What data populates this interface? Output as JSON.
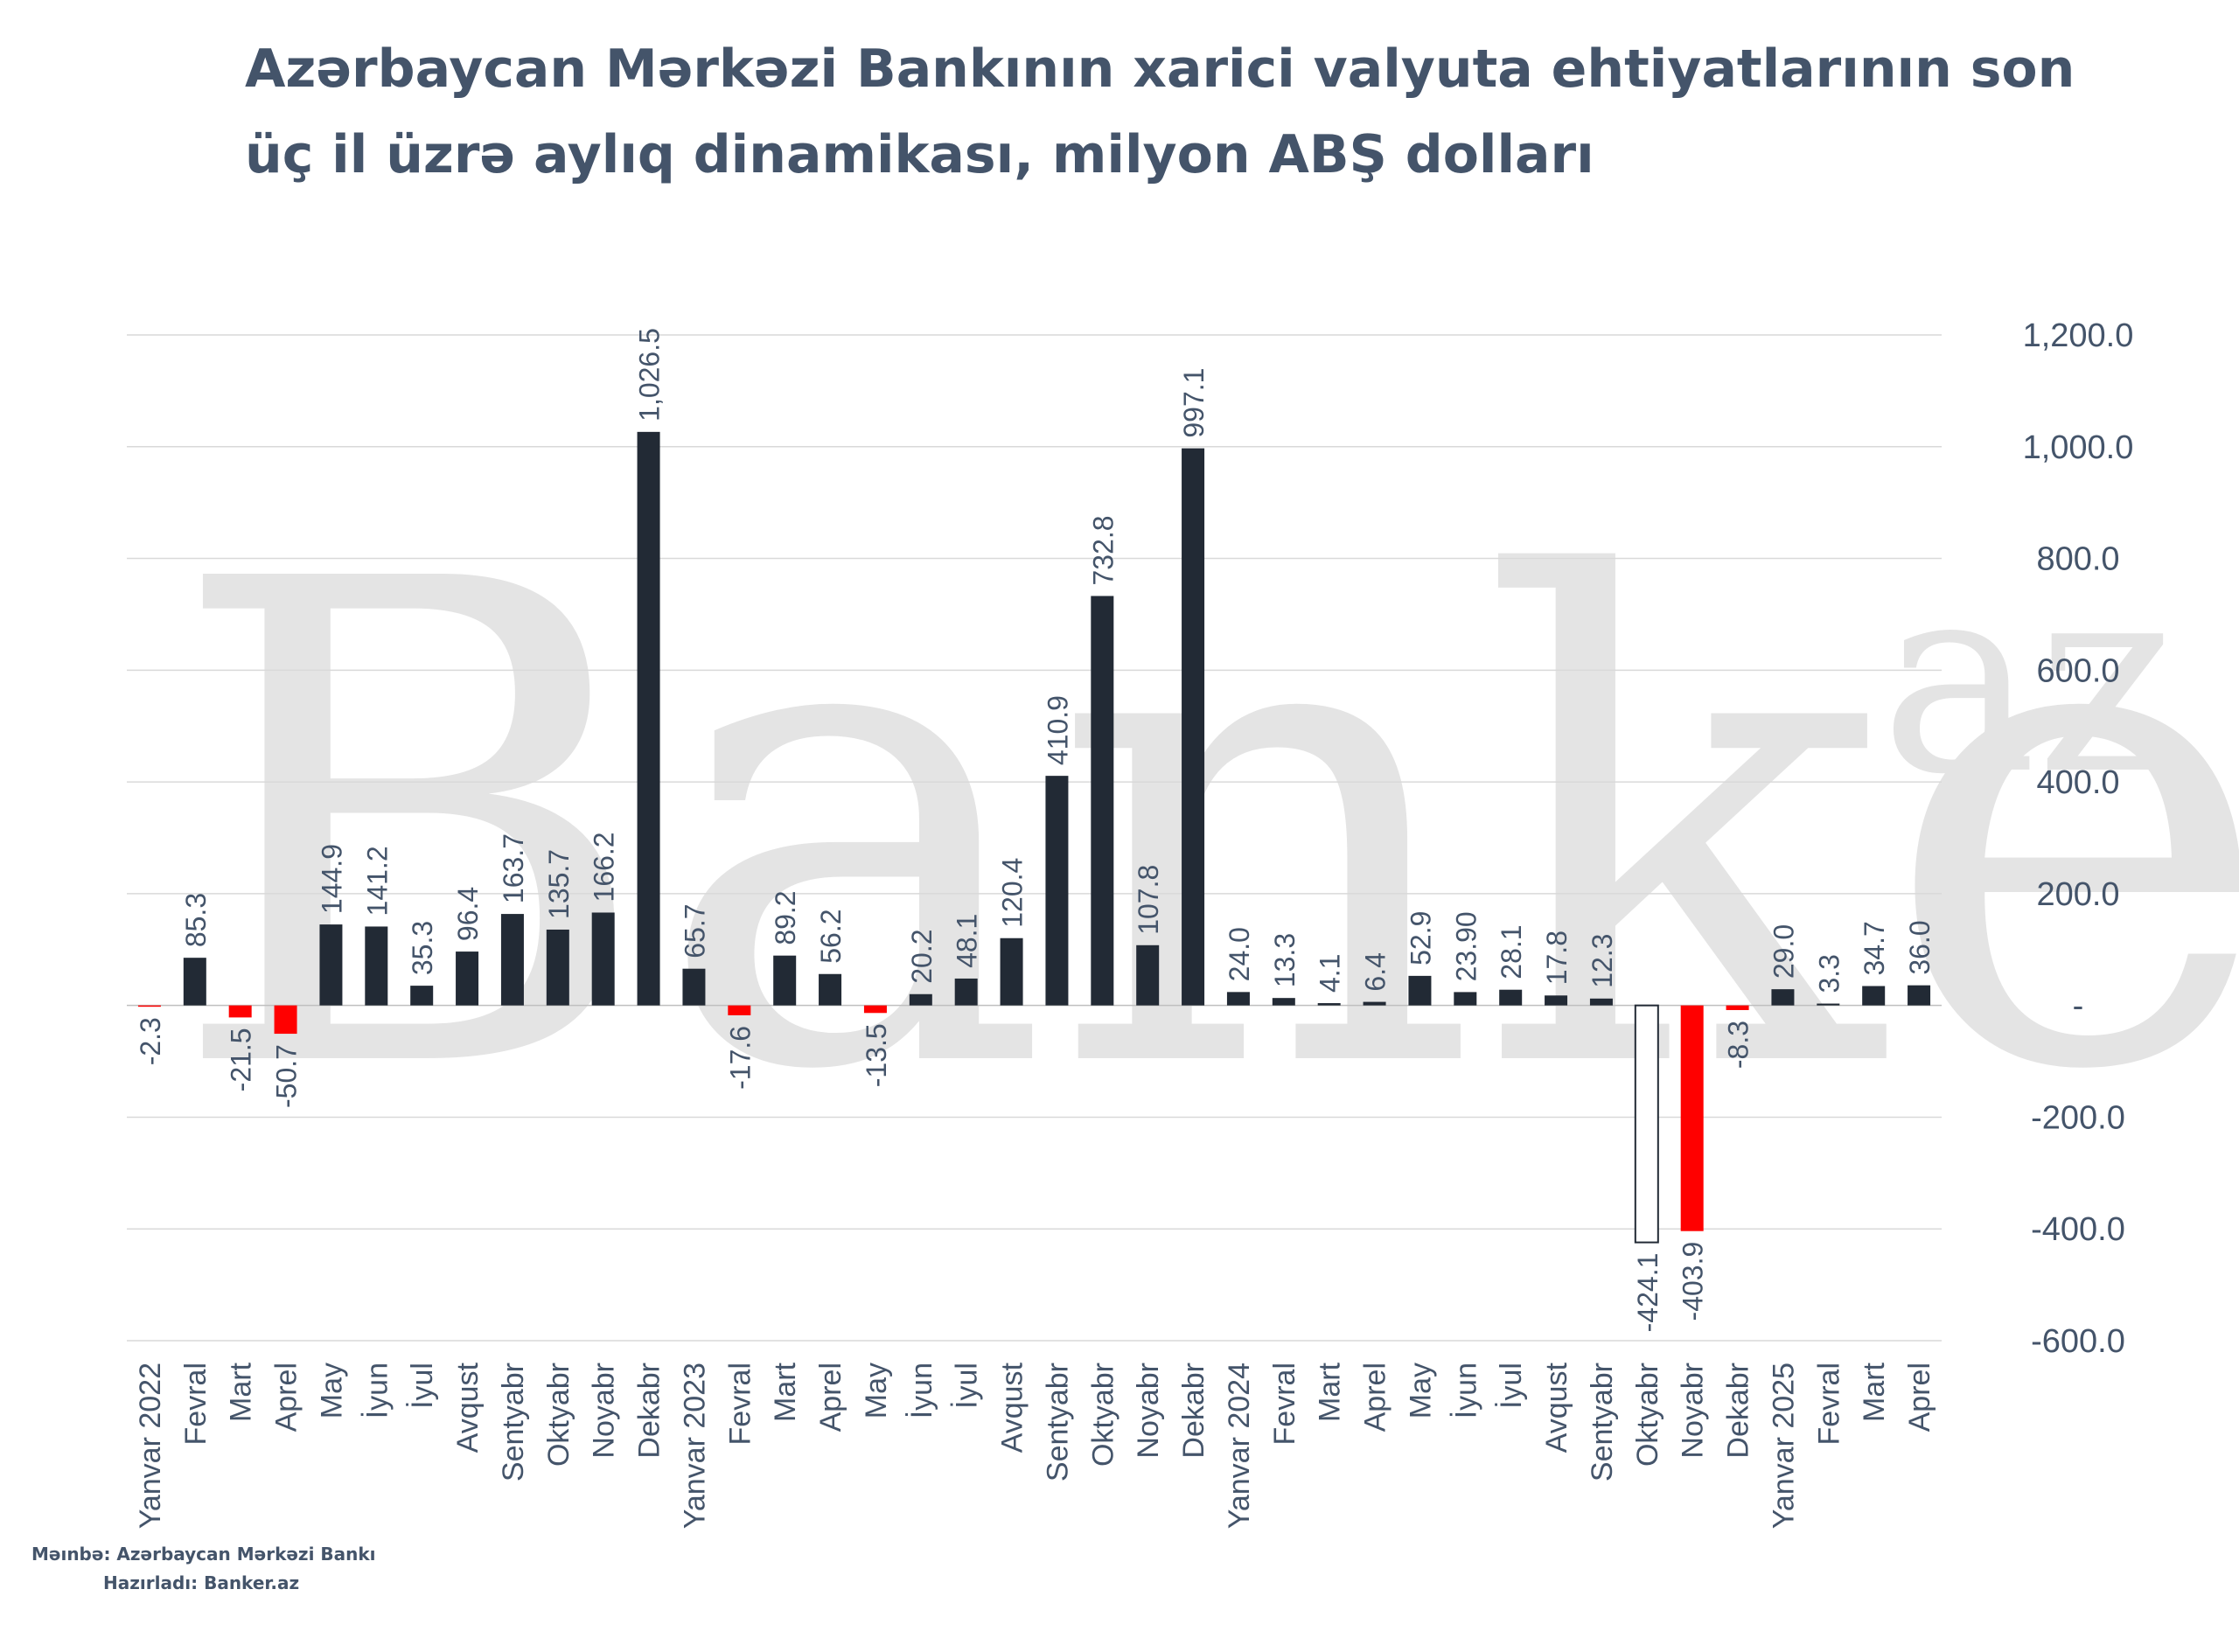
{
  "header": {
    "title_line1": "Azərbaycan Mərkəzi Bankının xarici valyuta ehtiyatlarının son",
    "title_line2": "üç il üzrə aylıq dinamikası, milyon ABŞ dolları"
  },
  "watermark": {
    "text_main": "Banker",
    "text_sup": "az"
  },
  "footer": {
    "source": "Məınbə: Azərbaycan Mərkəzi Bankı",
    "prepared": "Hazırladı: Banker.az"
  },
  "colors": {
    "positive": "#222a35",
    "negative": "#ff0000",
    "outlined": "#ffffff",
    "outline_stroke": "#222a35",
    "text": "#44546a",
    "grid": "#d9d9d9",
    "watermark": "#e4e4e4"
  },
  "chart_data": {
    "type": "bar",
    "title": "Azərbaycan Mərkəzi Bankının xarici valyuta ehtiyatlarının son üç il üzrə aylıq dinamikası, milyon ABŞ dolları",
    "categories": [
      "Yanvar  2022",
      "Fevral",
      "Mart",
      "Aprel",
      "May",
      "İyun",
      "İyul",
      "Avqust",
      "Sentyabr",
      "Oktyabr",
      "Noyabr",
      "Dekabr",
      "Yanvar 2023",
      "Fevral",
      "Mart",
      "Aprel",
      "May",
      "İyun",
      "İyul",
      "Avqust",
      "Sentyabr",
      "Oktyabr",
      "Noyabr",
      "Dekabr",
      "Yanvar 2024",
      "Fevral",
      "Mart",
      "Aprel",
      "May",
      "İyun",
      "İyul",
      "Avqust",
      "Sentyabr",
      "Oktyabr",
      "Noyabr",
      "Dekabr",
      "Yanvar 2025",
      "Fevral",
      "Mart",
      "Aprel"
    ],
    "values": [
      -2.3,
      85.3,
      -21.5,
      -50.7,
      144.9,
      141.2,
      35.3,
      96.4,
      163.7,
      135.7,
      166.2,
      1026.5,
      65.7,
      -17.6,
      89.2,
      56.2,
      -13.5,
      20.2,
      48.1,
      120.4,
      410.9,
      732.8,
      107.8,
      997.1,
      24.0,
      13.3,
      4.1,
      6.4,
      52.9,
      23.9,
      28.1,
      17.8,
      12.3,
      -424.1,
      -403.9,
      -8.3,
      29.0,
      3.3,
      34.7,
      36.0
    ],
    "data_labels": [
      "-2.3",
      "85.3",
      "-21.5",
      "-50.7",
      "144.9",
      "141.2",
      "35.3",
      "96.4",
      "163.7",
      "135.7",
      "166.2",
      "1,026.5",
      "65.7",
      "-17.6",
      "89.2",
      "56.2",
      "-13.5",
      "20.2",
      "48.1",
      "120.4",
      "410.9",
      "732.8",
      "107.8",
      "997.1",
      "24.0",
      "13.3",
      "4.1",
      "6.4",
      "52.9",
      "23.90",
      "28.1",
      "17.8",
      "12.3",
      "-424.1",
      "-403.9",
      "-8.3",
      "29.0",
      "3.3",
      "34.7",
      "36.0"
    ],
    "outlined_bar_index": 33,
    "ylim": [
      -600,
      1200
    ],
    "yticks": [
      1200,
      1000,
      800,
      600,
      400,
      200,
      0,
      -200,
      -400,
      -600
    ],
    "ytick_labels": [
      "1,200.0",
      "1,000.0",
      "800.0",
      "600.0",
      "400.0",
      "200.0",
      "-",
      "-200.0",
      "-400.0",
      "-600.0"
    ],
    "y_axis_side": "right",
    "grid": true,
    "xlabel": "",
    "ylabel": ""
  }
}
